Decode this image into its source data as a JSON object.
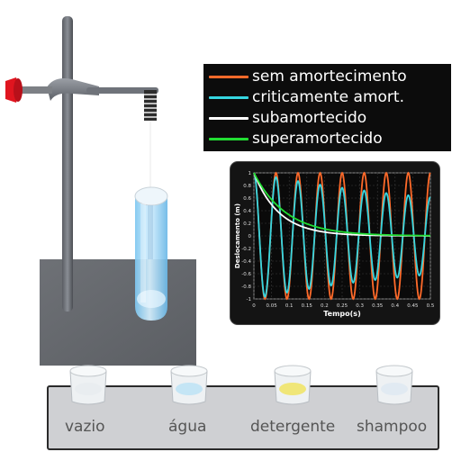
{
  "legend": {
    "items": [
      {
        "label": "sem amortecimento",
        "color": "#ff6a2a"
      },
      {
        "label": "criticamente amort.",
        "color": "#35d6e0"
      },
      {
        "label": "subamortecido",
        "color": "#ffffff"
      },
      {
        "label": "superamortecido",
        "color": "#22dd33"
      }
    ]
  },
  "chart_data": {
    "type": "line",
    "xlabel": "Tempo(s)",
    "ylabel": "Deslocamento (m)",
    "xlim": [
      0,
      0.5
    ],
    "ylim": [
      -1,
      1
    ],
    "xticks": [
      "0",
      "0.05",
      "0.1",
      "0.15",
      "0.2",
      "0.25",
      "0.3",
      "0.35",
      "0.4",
      "0.45",
      "0.5"
    ],
    "yticks": [
      "1",
      "0.8",
      "0.6",
      "0.4",
      "0.2",
      "0",
      "-0.2",
      "-0.4",
      "-0.6",
      "-0.8",
      "-1"
    ],
    "grid": true,
    "series": [
      {
        "color": "#ff6a2a",
        "model": "undamped",
        "amplitude": 1.0,
        "frequency_hz": 16,
        "decay_rate": 0
      },
      {
        "color": "#35d6e0",
        "model": "oscillating",
        "amplitude": 1.0,
        "frequency_hz": 16,
        "decay_rate": 1.8
      },
      {
        "color": "#ffffff",
        "model": "exponential",
        "amplitude": 1.0,
        "decay_rate": 14
      },
      {
        "color": "#22dd33",
        "model": "exponential",
        "amplitude": 1.0,
        "decay_rate": 11
      }
    ]
  },
  "cups": [
    {
      "label": "vazio",
      "liquid": "#e8ecef"
    },
    {
      "label": "água",
      "liquid": "#bfe3f5"
    },
    {
      "label": "detergente",
      "liquid": "#f0e46a"
    },
    {
      "label": "shampoo",
      "liquid": "#dfe9f2"
    }
  ]
}
